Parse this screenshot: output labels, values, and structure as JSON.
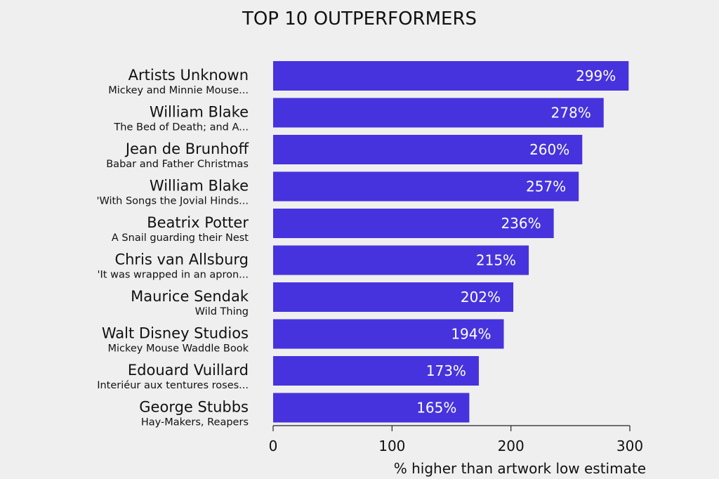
{
  "chart_data": {
    "type": "bar",
    "orientation": "horizontal",
    "title": "TOP 10 OUTPERFORMERS",
    "xlabel": "% higher than artwork low estimate",
    "xlim": [
      0,
      300
    ],
    "xticks": [
      "0",
      "100",
      "200",
      "300"
    ],
    "grid": false,
    "bar_color": "#4633dd",
    "categories": [
      {
        "artist": "Artists Unknown",
        "work": "Mickey and Minnie Mouse..."
      },
      {
        "artist": "William Blake",
        "work": "The Bed of Death; and A..."
      },
      {
        "artist": "Jean de Brunhoff",
        "work": "Babar and Father Christmas"
      },
      {
        "artist": "William Blake",
        "work": "'With Songs the Jovial Hinds..."
      },
      {
        "artist": "Beatrix Potter",
        "work": "A Snail guarding their Nest"
      },
      {
        "artist": "Chris van Allsburg",
        "work": "'It was wrapped in an apron..."
      },
      {
        "artist": "Maurice Sendak",
        "work": "Wild Thing"
      },
      {
        "artist": "Walt Disney Studios",
        "work": "Mickey Mouse Waddle Book"
      },
      {
        "artist": "Edouard Vuillard",
        "work": "Interiéur aux tentures roses..."
      },
      {
        "artist": "George Stubbs",
        "work": "Hay-Makers, Reapers"
      }
    ],
    "values": [
      299,
      278,
      260,
      257,
      236,
      215,
      202,
      194,
      173,
      165
    ],
    "value_labels": [
      "299%",
      "278%",
      "260%",
      "257%",
      "236%",
      "215%",
      "202%",
      "194%",
      "173%",
      "165%"
    ]
  }
}
